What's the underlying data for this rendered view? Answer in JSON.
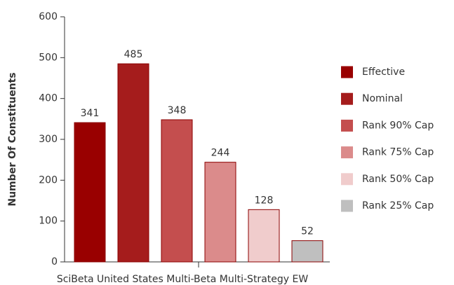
{
  "chart_data": {
    "type": "bar",
    "ylabel": "Number Of Constituents",
    "categories": [
      "SciBeta United States Multi-Beta Multi-Strategy EW"
    ],
    "series": [
      {
        "name": "Effective",
        "color": "#990000",
        "values": [
          341
        ]
      },
      {
        "name": "Nominal",
        "color": "#a51c1c",
        "values": [
          485
        ]
      },
      {
        "name": "Rank 90% Cap",
        "color": "#c44e4e",
        "values": [
          348
        ]
      },
      {
        "name": "Rank 75% Cap",
        "color": "#db8b8b",
        "values": [
          244
        ]
      },
      {
        "name": "Rank 50% Cap",
        "color": "#f0cccc",
        "values": [
          128
        ]
      },
      {
        "name": "Rank 25% Cap",
        "color": "#bfbfbf",
        "values": [
          52
        ]
      }
    ],
    "ylim": [
      0,
      600
    ],
    "yticks": [
      0,
      100,
      200,
      300,
      400,
      500,
      600
    ],
    "legend": "right"
  }
}
